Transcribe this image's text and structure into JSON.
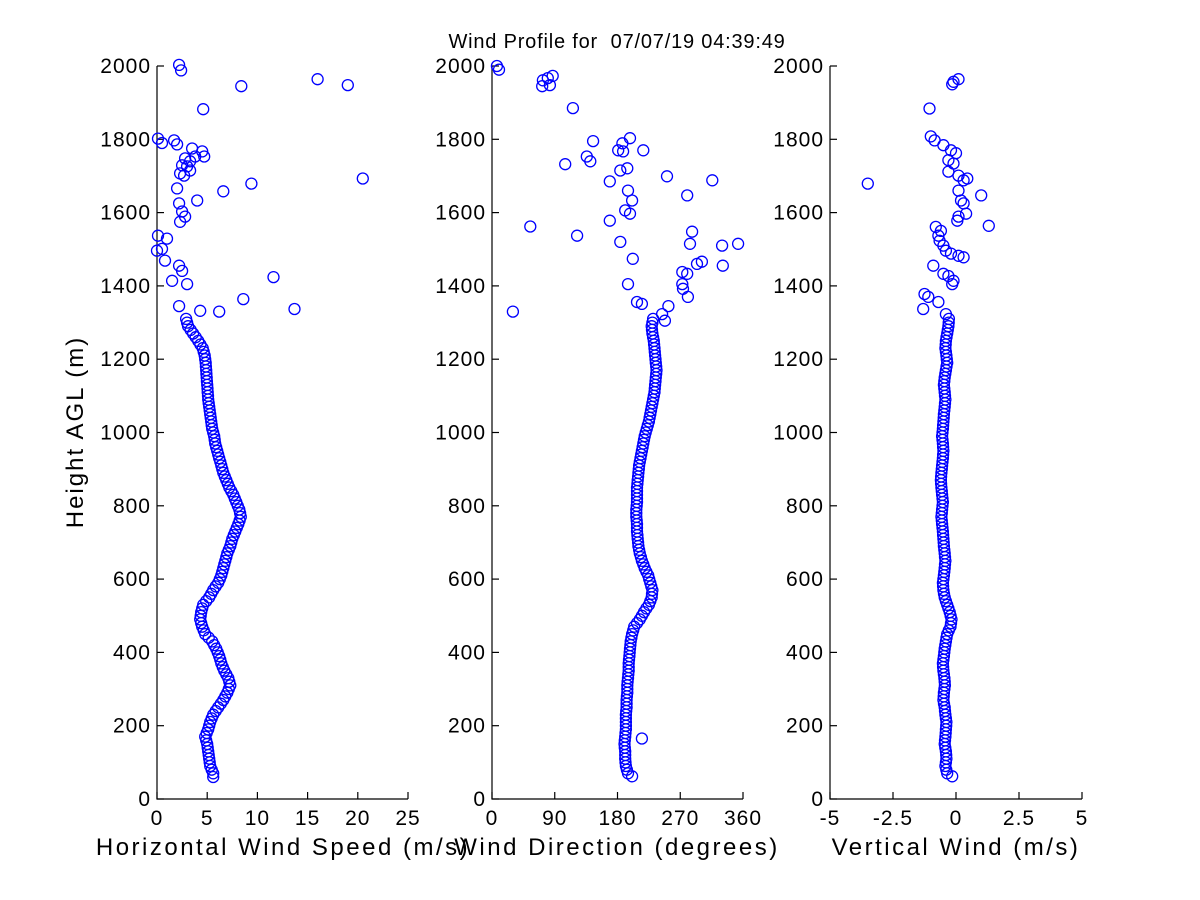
{
  "title": "Wind Profile for  07/07/19 04:39:49",
  "ylabel": "Height AGL (m)",
  "style": {
    "marker_color": "#0000ff",
    "axis_color": "#000000",
    "background_color": "#ffffff"
  },
  "chart_data": [
    {
      "id": "horizontal-wind-speed",
      "type": "scatter",
      "xlabel": "Horizontal Wind Speed (m/s)",
      "xlim": [
        0,
        25
      ],
      "xticks": [
        0,
        5,
        10,
        15,
        20,
        25
      ],
      "ylim": [
        0,
        2000
      ],
      "yticks": [
        0,
        200,
        400,
        600,
        800,
        1000,
        1200,
        1400,
        1600,
        1800,
        2000
      ],
      "marker": "o",
      "profile_point_spacing_m": 10,
      "profile_points": [
        [
          5.6,
          70
        ],
        [
          5.3,
          90
        ],
        [
          5.2,
          110
        ],
        [
          5.1,
          130
        ],
        [
          5.0,
          150
        ],
        [
          4.8,
          170
        ],
        [
          5.1,
          190
        ],
        [
          5.3,
          210
        ],
        [
          5.6,
          230
        ],
        [
          6.1,
          250
        ],
        [
          6.6,
          270
        ],
        [
          7.0,
          290
        ],
        [
          7.3,
          310
        ],
        [
          7.1,
          330
        ],
        [
          6.7,
          350
        ],
        [
          6.4,
          370
        ],
        [
          6.2,
          390
        ],
        [
          5.9,
          410
        ],
        [
          5.5,
          430
        ],
        [
          4.8,
          450
        ],
        [
          4.5,
          470
        ],
        [
          4.3,
          490
        ],
        [
          4.4,
          510
        ],
        [
          4.6,
          530
        ],
        [
          5.2,
          550
        ],
        [
          5.6,
          570
        ],
        [
          6.1,
          590
        ],
        [
          6.4,
          610
        ],
        [
          6.6,
          630
        ],
        [
          6.8,
          650
        ],
        [
          7.0,
          670
        ],
        [
          7.3,
          690
        ],
        [
          7.5,
          710
        ],
        [
          7.8,
          730
        ],
        [
          8.1,
          750
        ],
        [
          8.35,
          770
        ],
        [
          8.2,
          790
        ],
        [
          7.9,
          810
        ],
        [
          7.6,
          830
        ],
        [
          7.2,
          850
        ],
        [
          6.9,
          870
        ],
        [
          6.6,
          890
        ],
        [
          6.4,
          910
        ],
        [
          6.2,
          930
        ],
        [
          6.0,
          950
        ],
        [
          5.8,
          970
        ],
        [
          5.7,
          990
        ],
        [
          5.5,
          1010
        ],
        [
          5.4,
          1030
        ],
        [
          5.3,
          1050
        ],
        [
          5.2,
          1070
        ],
        [
          5.1,
          1090
        ],
        [
          5.05,
          1110
        ],
        [
          5.0,
          1130
        ],
        [
          4.95,
          1150
        ],
        [
          4.9,
          1170
        ],
        [
          4.85,
          1190
        ],
        [
          4.75,
          1210
        ],
        [
          4.55,
          1230
        ],
        [
          4.1,
          1250
        ],
        [
          3.6,
          1270
        ],
        [
          3.1,
          1290
        ],
        [
          2.9,
          1310
        ]
      ],
      "scatter_points": [
        [
          5.6,
          60
        ],
        [
          2.2,
          2003
        ],
        [
          2.4,
          1988
        ],
        [
          8.4,
          1945
        ],
        [
          16.0,
          1964
        ],
        [
          19.0,
          1948
        ],
        [
          4.6,
          1882
        ],
        [
          0.1,
          1802
        ],
        [
          0.5,
          1790
        ],
        [
          1.7,
          1797
        ],
        [
          2.0,
          1786
        ],
        [
          3.5,
          1775
        ],
        [
          4.5,
          1767
        ],
        [
          3.8,
          1753
        ],
        [
          4.7,
          1753
        ],
        [
          2.8,
          1748
        ],
        [
          3.3,
          1740
        ],
        [
          2.5,
          1729
        ],
        [
          3.0,
          1726
        ],
        [
          3.3,
          1715
        ],
        [
          2.3,
          1707
        ],
        [
          2.7,
          1701
        ],
        [
          2.0,
          1666
        ],
        [
          9.4,
          1679
        ],
        [
          20.5,
          1693
        ],
        [
          6.6,
          1658
        ],
        [
          4.0,
          1633
        ],
        [
          2.2,
          1625
        ],
        [
          2.5,
          1603
        ],
        [
          2.8,
          1589
        ],
        [
          2.3,
          1575
        ],
        [
          0.1,
          1537
        ],
        [
          1.0,
          1529
        ],
        [
          0.5,
          1501
        ],
        [
          0.0,
          1496
        ],
        [
          0.8,
          1469
        ],
        [
          2.2,
          1455
        ],
        [
          2.5,
          1441
        ],
        [
          1.5,
          1414
        ],
        [
          3.0,
          1405
        ],
        [
          11.6,
          1424
        ],
        [
          8.6,
          1364
        ],
        [
          2.2,
          1345
        ],
        [
          13.7,
          1337
        ],
        [
          4.3,
          1332
        ],
        [
          6.2,
          1330
        ]
      ]
    },
    {
      "id": "wind-direction",
      "type": "scatter",
      "xlabel": "Wind Direction (degrees)",
      "xlim": [
        0,
        360
      ],
      "xticks": [
        0,
        90,
        180,
        270,
        360
      ],
      "ylim": [
        0,
        2000
      ],
      "yticks": [
        0,
        200,
        400,
        600,
        800,
        1000,
        1200,
        1400,
        1600,
        1800,
        2000
      ],
      "marker": "o",
      "profile_point_spacing_m": 10,
      "profile_points": [
        [
          195,
          70
        ],
        [
          192,
          90
        ],
        [
          191,
          110
        ],
        [
          191,
          130
        ],
        [
          190,
          150
        ],
        [
          191,
          170
        ],
        [
          192,
          190
        ],
        [
          192,
          210
        ],
        [
          192,
          230
        ],
        [
          193,
          250
        ],
        [
          193,
          270
        ],
        [
          194,
          290
        ],
        [
          194,
          310
        ],
        [
          195,
          330
        ],
        [
          196,
          350
        ],
        [
          196,
          370
        ],
        [
          197,
          390
        ],
        [
          198,
          410
        ],
        [
          199,
          430
        ],
        [
          201,
          450
        ],
        [
          204,
          470
        ],
        [
          212,
          490
        ],
        [
          218,
          510
        ],
        [
          225,
          530
        ],
        [
          229,
          550
        ],
        [
          230,
          570
        ],
        [
          227,
          590
        ],
        [
          224,
          610
        ],
        [
          219,
          630
        ],
        [
          215,
          650
        ],
        [
          212,
          670
        ],
        [
          210,
          690
        ],
        [
          209,
          710
        ],
        [
          208,
          730
        ],
        [
          208,
          750
        ],
        [
          207,
          770
        ],
        [
          207,
          790
        ],
        [
          208,
          810
        ],
        [
          208,
          830
        ],
        [
          208,
          850
        ],
        [
          209,
          870
        ],
        [
          210,
          890
        ],
        [
          211,
          910
        ],
        [
          213,
          930
        ],
        [
          215,
          950
        ],
        [
          217,
          970
        ],
        [
          219,
          990
        ],
        [
          222,
          1010
        ],
        [
          225,
          1030
        ],
        [
          227,
          1050
        ],
        [
          229,
          1070
        ],
        [
          231,
          1090
        ],
        [
          233,
          1110
        ],
        [
          234,
          1130
        ],
        [
          235,
          1150
        ],
        [
          236,
          1170
        ],
        [
          235,
          1190
        ],
        [
          234,
          1210
        ],
        [
          233,
          1230
        ],
        [
          232,
          1250
        ],
        [
          230,
          1270
        ],
        [
          229,
          1290
        ],
        [
          231,
          1310
        ]
      ],
      "scatter_points": [
        [
          201,
          62
        ],
        [
          215,
          165
        ],
        [
          7,
          2000
        ],
        [
          10,
          1990
        ],
        [
          73,
          1961
        ],
        [
          80,
          1967
        ],
        [
          87,
          1973
        ],
        [
          72,
          1945
        ],
        [
          83,
          1948
        ],
        [
          116,
          1885
        ],
        [
          145,
          1795
        ],
        [
          187,
          1789
        ],
        [
          198,
          1803
        ],
        [
          217,
          1770
        ],
        [
          181,
          1770
        ],
        [
          188,
          1767
        ],
        [
          136,
          1753
        ],
        [
          141,
          1740
        ],
        [
          105,
          1732
        ],
        [
          184,
          1715
        ],
        [
          194,
          1721
        ],
        [
          169,
          1685
        ],
        [
          195,
          1660
        ],
        [
          251,
          1699
        ],
        [
          316,
          1688
        ],
        [
          280,
          1647
        ],
        [
          201,
          1633
        ],
        [
          191,
          1606
        ],
        [
          198,
          1597
        ],
        [
          169,
          1578
        ],
        [
          55,
          1562
        ],
        [
          122,
          1537
        ],
        [
          184,
          1520
        ],
        [
          287,
          1548
        ],
        [
          284,
          1515
        ],
        [
          330,
          1510
        ],
        [
          353,
          1515
        ],
        [
          294,
          1460
        ],
        [
          301,
          1466
        ],
        [
          331,
          1455
        ],
        [
          273,
          1438
        ],
        [
          280,
          1433
        ],
        [
          202,
          1474
        ],
        [
          274,
          1392
        ],
        [
          281,
          1370
        ],
        [
          273,
          1405
        ],
        [
          195,
          1405
        ],
        [
          208,
          1356
        ],
        [
          215,
          1351
        ],
        [
          253,
          1345
        ],
        [
          244,
          1323
        ],
        [
          248,
          1305
        ],
        [
          30,
          1330
        ]
      ]
    },
    {
      "id": "vertical-wind",
      "type": "scatter",
      "xlabel": "Vertical Wind (m/s)",
      "xlim": [
        -5,
        5
      ],
      "xticks": [
        -5,
        -2.5,
        0,
        2.5,
        5
      ],
      "ylim": [
        0,
        2000
      ],
      "yticks": [
        0,
        200,
        400,
        600,
        800,
        1000,
        1200,
        1400,
        1600,
        1800,
        2000
      ],
      "marker": "o",
      "profile_point_spacing_m": 10,
      "profile_points": [
        [
          -0.35,
          70
        ],
        [
          -0.42,
          90
        ],
        [
          -0.38,
          110
        ],
        [
          -0.4,
          130
        ],
        [
          -0.45,
          150
        ],
        [
          -0.42,
          170
        ],
        [
          -0.4,
          190
        ],
        [
          -0.38,
          210
        ],
        [
          -0.42,
          230
        ],
        [
          -0.45,
          250
        ],
        [
          -0.5,
          270
        ],
        [
          -0.48,
          290
        ],
        [
          -0.44,
          310
        ],
        [
          -0.46,
          330
        ],
        [
          -0.5,
          350
        ],
        [
          -0.52,
          370
        ],
        [
          -0.48,
          390
        ],
        [
          -0.45,
          410
        ],
        [
          -0.4,
          430
        ],
        [
          -0.35,
          450
        ],
        [
          -0.22,
          470
        ],
        [
          -0.18,
          490
        ],
        [
          -0.25,
          510
        ],
        [
          -0.35,
          530
        ],
        [
          -0.45,
          550
        ],
        [
          -0.5,
          570
        ],
        [
          -0.52,
          590
        ],
        [
          -0.48,
          610
        ],
        [
          -0.45,
          630
        ],
        [
          -0.42,
          650
        ],
        [
          -0.45,
          670
        ],
        [
          -0.48,
          690
        ],
        [
          -0.5,
          710
        ],
        [
          -0.52,
          730
        ],
        [
          -0.55,
          750
        ],
        [
          -0.58,
          770
        ],
        [
          -0.55,
          790
        ],
        [
          -0.52,
          810
        ],
        [
          -0.55,
          830
        ],
        [
          -0.58,
          850
        ],
        [
          -0.6,
          870
        ],
        [
          -0.58,
          890
        ],
        [
          -0.55,
          910
        ],
        [
          -0.52,
          930
        ],
        [
          -0.5,
          950
        ],
        [
          -0.52,
          970
        ],
        [
          -0.55,
          990
        ],
        [
          -0.52,
          1010
        ],
        [
          -0.5,
          1030
        ],
        [
          -0.48,
          1050
        ],
        [
          -0.45,
          1070
        ],
        [
          -0.42,
          1090
        ],
        [
          -0.45,
          1110
        ],
        [
          -0.48,
          1130
        ],
        [
          -0.45,
          1150
        ],
        [
          -0.4,
          1170
        ],
        [
          -0.35,
          1190
        ],
        [
          -0.38,
          1210
        ],
        [
          -0.42,
          1230
        ],
        [
          -0.4,
          1250
        ],
        [
          -0.35,
          1270
        ],
        [
          -0.3,
          1290
        ],
        [
          -0.28,
          1310
        ]
      ],
      "scatter_points": [
        [
          -0.15,
          62
        ],
        [
          -0.1,
          1957
        ],
        [
          0.1,
          1964
        ],
        [
          -0.15,
          1950
        ],
        [
          -1.05,
          1884
        ],
        [
          -1.0,
          1808
        ],
        [
          -0.85,
          1797
        ],
        [
          -0.5,
          1784
        ],
        [
          -0.2,
          1770
        ],
        [
          0.0,
          1762
        ],
        [
          -0.3,
          1743
        ],
        [
          -0.1,
          1734
        ],
        [
          -0.3,
          1712
        ],
        [
          0.1,
          1701
        ],
        [
          0.3,
          1688
        ],
        [
          0.45,
          1693
        ],
        [
          -3.5,
          1679
        ],
        [
          0.1,
          1660
        ],
        [
          1.0,
          1647
        ],
        [
          0.2,
          1633
        ],
        [
          0.3,
          1625
        ],
        [
          0.4,
          1597
        ],
        [
          0.1,
          1589
        ],
        [
          0.05,
          1578
        ],
        [
          1.3,
          1564
        ],
        [
          -0.8,
          1561
        ],
        [
          -0.6,
          1550
        ],
        [
          -0.7,
          1537
        ],
        [
          -0.65,
          1523
        ],
        [
          -0.5,
          1510
        ],
        [
          -0.4,
          1496
        ],
        [
          -0.2,
          1488
        ],
        [
          0.1,
          1482
        ],
        [
          0.3,
          1478
        ],
        [
          -0.9,
          1455
        ],
        [
          -0.5,
          1433
        ],
        [
          -0.3,
          1427
        ],
        [
          -0.1,
          1414
        ],
        [
          -0.15,
          1405
        ],
        [
          -1.25,
          1378
        ],
        [
          -1.1,
          1370
        ],
        [
          -0.7,
          1356
        ],
        [
          -1.3,
          1337
        ],
        [
          -0.4,
          1323
        ]
      ]
    }
  ]
}
